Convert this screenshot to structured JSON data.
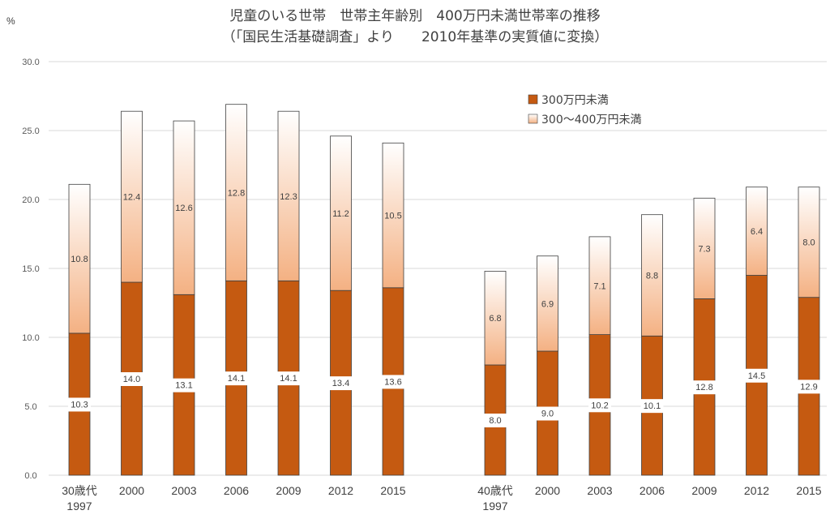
{
  "chart_data": {
    "type": "bar",
    "stacked": true,
    "title": "児童のいる世帯　世帯主年齢別　400万円未満世帯率の推移",
    "subtitle": "（「国民生活基礎調査」より　　2010年基準の実質値に変換）",
    "ylabel": "%",
    "ylim": [
      0,
      30
    ],
    "yticks": [
      "0.0",
      "5.0",
      "10.0",
      "15.0",
      "20.0",
      "25.0",
      "30.0"
    ],
    "grid": true,
    "legend_position": "top-right",
    "groups": [
      {
        "categories": [
          "30歳代\n1997",
          "2000",
          "2003",
          "2006",
          "2009",
          "2012",
          "2015"
        ],
        "series": [
          {
            "name": "300万円未満",
            "values": [
              10.3,
              14.0,
              13.1,
              14.1,
              14.1,
              13.4,
              13.6
            ]
          },
          {
            "name": "300～400万円未満",
            "values": [
              10.8,
              12.4,
              12.6,
              12.8,
              12.3,
              11.2,
              10.5
            ]
          }
        ]
      },
      {
        "categories": [
          "40歳代\n1997",
          "2000",
          "2003",
          "2006",
          "2009",
          "2012",
          "2015"
        ],
        "series": [
          {
            "name": "300万円未満",
            "values": [
              8.0,
              9.0,
              10.2,
              10.1,
              12.8,
              14.5,
              12.9
            ]
          },
          {
            "name": "300～400万円未満",
            "values": [
              6.8,
              6.9,
              7.1,
              8.8,
              7.3,
              6.4,
              8.0
            ]
          }
        ]
      }
    ],
    "legend": [
      "300万円未満",
      "300～400万円未満"
    ],
    "colors": {
      "series1": "#C55A11",
      "series2_top": "#FFFFFF",
      "series2_bottom": "#F4B183",
      "grid": "#D9D9D9",
      "outline": "#404040"
    }
  }
}
